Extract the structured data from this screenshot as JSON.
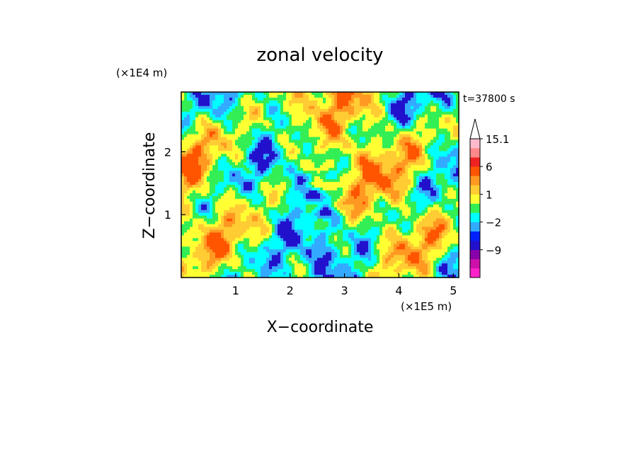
{
  "chart_data": {
    "type": "heatmap",
    "title": "zonal velocity",
    "xlabel": "X−coordinate",
    "ylabel": "Z−coordinate",
    "x_scale_label": "(×1E5 m)",
    "y_scale_label": "(×1E4 m)",
    "time_label": "t=37800 s",
    "xlim": [
      0,
      5.1
    ],
    "ylim": [
      0,
      2.95
    ],
    "x_ticks": [
      "1",
      "2",
      "3",
      "4",
      "5"
    ],
    "y_ticks": [
      "1",
      "2"
    ],
    "x_tick_values": [
      1,
      2,
      3,
      4,
      5
    ],
    "y_tick_values": [
      1,
      2
    ],
    "colorbar": {
      "levels": [
        -15,
        -12,
        -9,
        -6,
        -4,
        -2,
        -1,
        0,
        1,
        2,
        4,
        6,
        9,
        12,
        15.1
      ],
      "labels": [
        "15.1",
        "6",
        "1",
        "−2",
        "−9"
      ],
      "label_values": [
        15.1,
        6,
        1,
        -2,
        -9
      ],
      "colors": [
        "#ff22cc",
        "#cc11aa",
        "#8800aa",
        "#2211cc",
        "#0022ff",
        "#33aaff",
        "#00ffff",
        "#33ee55",
        "#ffff33",
        "#ffcc33",
        "#ff9922",
        "#ff5500",
        "#ee2222",
        "#ff8888",
        "#ffbbcc"
      ],
      "extend_max": true
    }
  }
}
